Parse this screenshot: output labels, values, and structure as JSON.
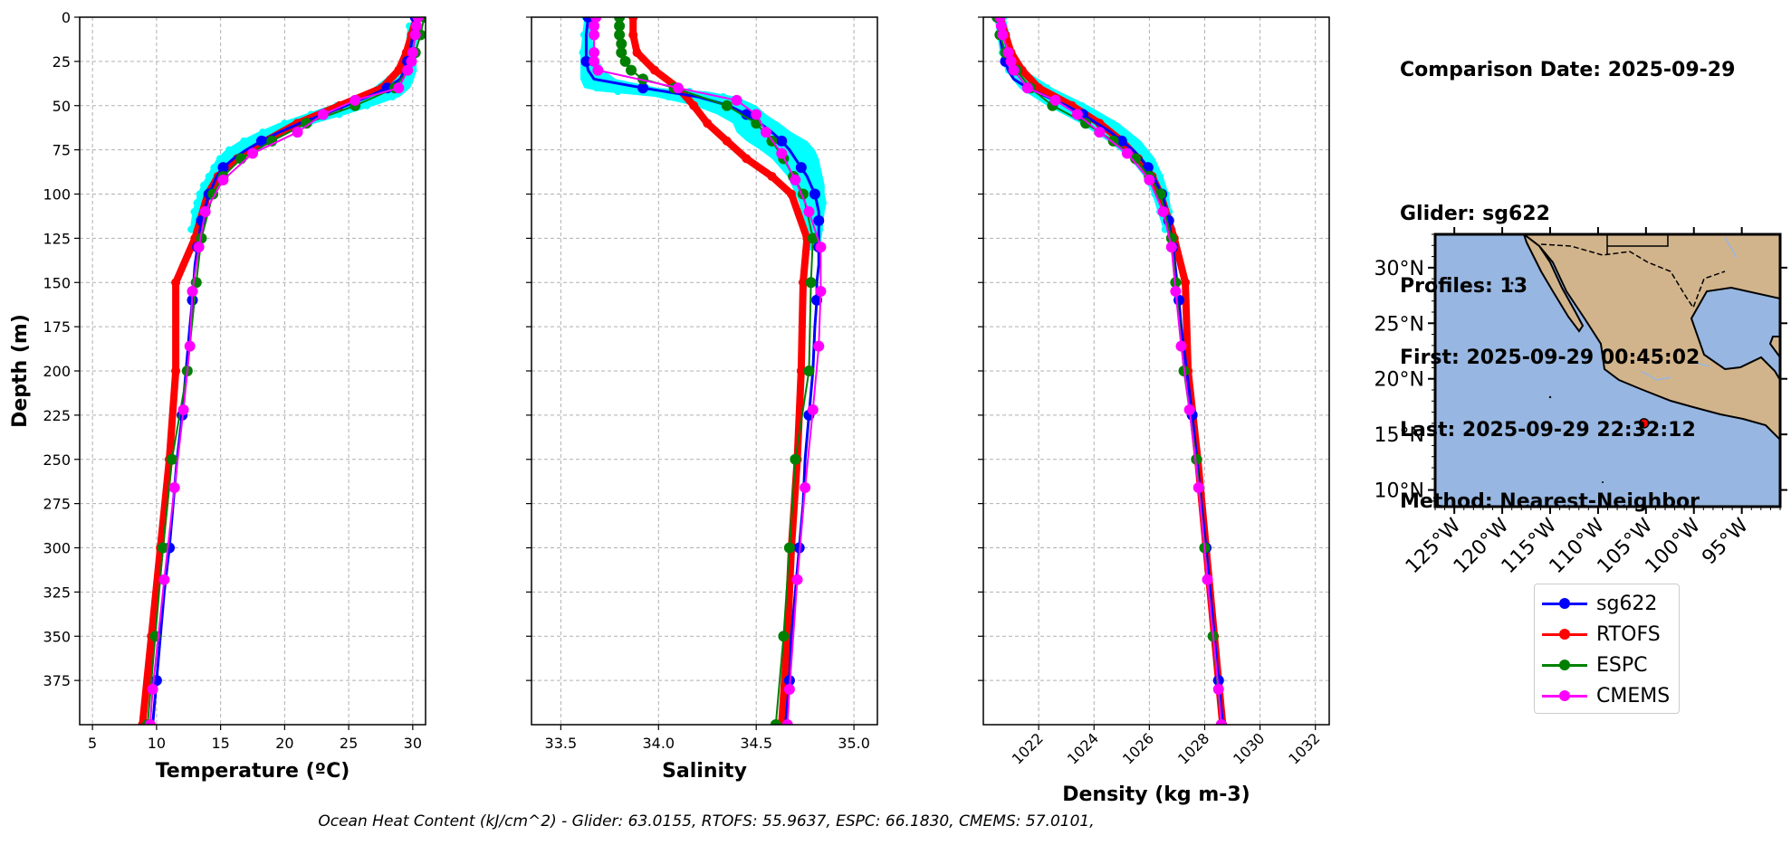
{
  "info": {
    "comparison_date": "Comparison Date: 2025-09-29",
    "glider": "Glider: sg622",
    "profiles": "Profiles: 13",
    "first": "First: 2025-09-29 00:45:02",
    "last": "Last: 2025-09-29 22:32:12",
    "method": "Method: Nearest-Neighbor"
  },
  "legend": [
    {
      "name": "sg622",
      "color": "#0000ff"
    },
    {
      "name": "RTOFS",
      "color": "#ff0000"
    },
    {
      "name": "ESPC",
      "color": "#008000"
    },
    {
      "name": "CMEMS",
      "color": "#ff00ff"
    }
  ],
  "footer": "Ocean Heat Content (kJ/cm^2) - Glider: 63.0155,  RTOFS: 55.9637,  ESPC: 66.1830,  CMEMS: 57.0101,",
  "map": {
    "lat_labels": [
      "30°N",
      "25°N",
      "20°N",
      "15°N",
      "10°N"
    ],
    "lon_labels": [
      "125°W",
      "120°W",
      "115°W",
      "110°W",
      "105°W",
      "100°W",
      "95°W"
    ],
    "glider_position": {
      "lon": -105.2,
      "lat": 16.0
    },
    "ocean_color": "#97b6e1",
    "land_color": "#d2b48c"
  },
  "chart_data": [
    {
      "type": "line",
      "xlabel": "Temperature (ºC)",
      "ylabel": "Depth (m)",
      "xlim": [
        4,
        31
      ],
      "ylim": [
        400,
        0
      ],
      "xticks": [
        5,
        10,
        15,
        20,
        25,
        30
      ],
      "yticks": [
        0,
        25,
        50,
        75,
        100,
        125,
        150,
        175,
        200,
        225,
        250,
        275,
        300,
        325,
        350,
        375
      ],
      "grid": true,
      "glider_cloud": {
        "color": "#00ffff",
        "depth": [
          5,
          20,
          30,
          35,
          40,
          45,
          50,
          55,
          60,
          65,
          70,
          75,
          80,
          85,
          90,
          95,
          100,
          105,
          110,
          120
        ],
        "min": [
          29.6,
          29.4,
          28.8,
          27.8,
          26.9,
          25.5,
          23.5,
          21.5,
          19.5,
          17.9,
          16.5,
          15.4,
          14.7,
          14.3,
          13.9,
          13.5,
          13.2,
          13.0,
          12.8,
          12.6
        ],
        "max": [
          30.4,
          30.3,
          30.3,
          30.1,
          29.8,
          29.0,
          27.0,
          24.8,
          22.4,
          20.2,
          18.4,
          17.0,
          16.2,
          15.4,
          15.0,
          14.6,
          14.2,
          13.9,
          13.6,
          13.2
        ]
      },
      "series": [
        {
          "name": "sg622",
          "color": "#0000ff",
          "marker_every": 3,
          "width": 3,
          "depth": [
            0,
            10,
            20,
            25,
            30,
            35,
            40,
            45,
            50,
            55,
            60,
            65,
            70,
            75,
            80,
            85,
            90,
            95,
            100,
            105,
            110,
            115,
            120,
            125,
            130,
            140,
            150,
            160,
            175,
            200,
            225,
            250,
            275,
            300,
            325,
            350,
            375,
            400
          ],
          "values": [
            30.2,
            30.0,
            29.8,
            29.6,
            29.4,
            29.0,
            28.0,
            26.5,
            24.8,
            23.0,
            21.2,
            19.6,
            18.2,
            17.0,
            16.0,
            15.2,
            14.7,
            14.4,
            14.1,
            13.9,
            13.7,
            13.5,
            13.4,
            13.3,
            13.2,
            13.0,
            12.9,
            12.8,
            12.6,
            12.3,
            12.0,
            11.6,
            11.3,
            11.0,
            10.6,
            10.3,
            10.0,
            9.7
          ]
        },
        {
          "name": "RTOFS",
          "color": "#ff0000",
          "marker_every": 1,
          "width": 8,
          "depth": [
            0,
            10,
            20,
            30,
            40,
            50,
            60,
            70,
            80,
            90,
            100,
            125,
            150,
            200,
            250,
            300,
            350,
            400
          ],
          "values": [
            30.3,
            29.9,
            29.5,
            28.9,
            27.6,
            24.3,
            21.0,
            18.5,
            16.3,
            14.8,
            14.0,
            13.0,
            11.5,
            11.5,
            11.0,
            10.3,
            9.6,
            8.9
          ]
        },
        {
          "name": "ESPC",
          "color": "#008000",
          "marker_every": 1,
          "width": 2,
          "depth": [
            0,
            10,
            20,
            30,
            40,
            50,
            60,
            70,
            80,
            90,
            100,
            125,
            150,
            200,
            250,
            300,
            350,
            400
          ],
          "values": [
            30.9,
            30.6,
            30.2,
            29.6,
            28.6,
            25.5,
            21.7,
            19.0,
            16.6,
            15.2,
            14.4,
            13.5,
            13.1,
            12.4,
            11.2,
            10.5,
            9.9,
            9.3
          ]
        },
        {
          "name": "CMEMS",
          "color": "#ff00ff",
          "marker_every": 1,
          "width": 2,
          "depth": [
            0,
            5,
            10,
            20,
            25,
            30,
            40,
            47,
            55,
            65,
            77,
            92,
            110,
            130,
            155,
            186,
            222,
            266,
            318,
            380,
            400
          ],
          "values": [
            30.4,
            30.3,
            30.2,
            30.0,
            29.9,
            29.6,
            28.9,
            25.5,
            23.0,
            21.0,
            17.5,
            15.2,
            13.8,
            13.3,
            12.8,
            12.6,
            12.1,
            11.4,
            10.6,
            9.7,
            9.5
          ]
        }
      ]
    },
    {
      "type": "line",
      "xlabel": "Salinity",
      "ylabel": "",
      "xlim": [
        33.35,
        35.12
      ],
      "ylim": [
        400,
        0
      ],
      "xticks": [
        33.5,
        34.0,
        34.5,
        35.0
      ],
      "xtick_labels": [
        "33.5",
        "34.0",
        "34.5",
        "35.0"
      ],
      "grid": true,
      "glider_cloud": {
        "color": "#00ffff",
        "depth": [
          0,
          10,
          20,
          30,
          35,
          40,
          42,
          45,
          50,
          55,
          60,
          65,
          70,
          75,
          80,
          85,
          90,
          95,
          100,
          105,
          110,
          120,
          130
        ],
        "min": [
          33.62,
          33.61,
          33.6,
          33.6,
          33.6,
          33.62,
          33.7,
          33.98,
          34.18,
          34.3,
          34.38,
          34.4,
          34.45,
          34.52,
          34.58,
          34.62,
          34.66,
          34.68,
          34.7,
          34.72,
          34.73,
          34.75,
          34.76
        ],
        "max": [
          33.66,
          33.66,
          33.67,
          33.72,
          33.78,
          34.0,
          34.25,
          34.4,
          34.5,
          34.55,
          34.62,
          34.68,
          34.76,
          34.8,
          34.82,
          34.83,
          34.84,
          34.85,
          34.85,
          34.86,
          34.85,
          34.84,
          34.83
        ]
      },
      "series": [
        {
          "name": "sg622",
          "color": "#0000ff",
          "marker_every": 3,
          "width": 3,
          "depth": [
            0,
            10,
            20,
            25,
            30,
            35,
            40,
            45,
            50,
            55,
            60,
            65,
            70,
            75,
            80,
            85,
            90,
            95,
            100,
            105,
            110,
            115,
            120,
            125,
            130,
            140,
            150,
            160,
            175,
            200,
            225,
            250,
            275,
            300,
            325,
            350,
            375,
            400
          ],
          "values": [
            33.64,
            33.63,
            33.63,
            33.63,
            33.64,
            33.67,
            33.92,
            34.2,
            34.36,
            34.45,
            34.52,
            34.58,
            34.63,
            34.67,
            34.7,
            34.73,
            34.76,
            34.78,
            34.8,
            34.81,
            34.82,
            34.82,
            34.82,
            34.82,
            34.82,
            34.82,
            34.81,
            34.81,
            34.8,
            34.79,
            34.77,
            34.75,
            34.74,
            34.72,
            34.7,
            34.68,
            34.67,
            34.65
          ]
        },
        {
          "name": "RTOFS",
          "color": "#ff0000",
          "marker_every": 1,
          "width": 8,
          "depth": [
            0,
            10,
            20,
            30,
            40,
            50,
            60,
            70,
            80,
            90,
            100,
            125,
            150,
            200,
            250,
            300,
            350,
            400
          ],
          "values": [
            33.87,
            33.87,
            33.89,
            33.98,
            34.1,
            34.18,
            34.25,
            34.35,
            34.45,
            34.58,
            34.68,
            34.76,
            34.74,
            34.73,
            34.71,
            34.68,
            34.66,
            34.63
          ]
        },
        {
          "name": "ESPC",
          "color": "#008000",
          "marker_every": 1,
          "width": 2,
          "depth": [
            0,
            5,
            10,
            15,
            20,
            25,
            30,
            35,
            40,
            50,
            60,
            70,
            80,
            90,
            100,
            125,
            150,
            200,
            250,
            300,
            350,
            400
          ],
          "values": [
            33.8,
            33.8,
            33.8,
            33.81,
            33.81,
            33.83,
            33.86,
            33.92,
            34.08,
            34.35,
            34.5,
            34.58,
            34.64,
            34.69,
            34.74,
            34.79,
            34.78,
            34.77,
            34.7,
            34.67,
            34.64,
            34.6
          ]
        },
        {
          "name": "CMEMS",
          "color": "#ff00ff",
          "marker_every": 1,
          "width": 2,
          "depth": [
            0,
            5,
            10,
            20,
            25,
            30,
            40,
            47,
            55,
            65,
            77,
            92,
            110,
            130,
            155,
            186,
            222,
            266,
            318,
            380,
            400
          ],
          "values": [
            33.68,
            33.67,
            33.67,
            33.67,
            33.67,
            33.69,
            34.1,
            34.4,
            34.5,
            34.55,
            34.63,
            34.7,
            34.77,
            34.83,
            34.83,
            34.82,
            34.79,
            34.75,
            34.71,
            34.67,
            34.66
          ]
        }
      ]
    },
    {
      "type": "line",
      "xlabel": "Density (kg m-3)",
      "ylabel": "",
      "xlim": [
        1020.0,
        1032.5
      ],
      "ylim": [
        400,
        0
      ],
      "xticks": [
        1022,
        1024,
        1026,
        1028,
        1030,
        1032
      ],
      "grid": true,
      "glider_cloud": {
        "color": "#00ffff",
        "depth": [
          0,
          20,
          30,
          40,
          50,
          60,
          70,
          80,
          90,
          100,
          110,
          120
        ],
        "min": [
          1020.4,
          1020.6,
          1020.8,
          1021.3,
          1022.3,
          1023.5,
          1024.5,
          1025.3,
          1025.8,
          1026.1,
          1026.3,
          1026.5
        ],
        "max": [
          1020.8,
          1021.1,
          1021.5,
          1022.5,
          1023.8,
          1024.9,
          1025.7,
          1026.2,
          1026.5,
          1026.7,
          1026.8,
          1026.9
        ]
      },
      "series": [
        {
          "name": "sg622",
          "color": "#0000ff",
          "marker_every": 3,
          "width": 3,
          "depth": [
            0,
            10,
            20,
            25,
            30,
            35,
            40,
            45,
            50,
            55,
            60,
            65,
            70,
            75,
            80,
            85,
            90,
            95,
            100,
            105,
            110,
            115,
            120,
            125,
            130,
            140,
            150,
            160,
            175,
            200,
            225,
            250,
            275,
            300,
            325,
            350,
            375,
            400
          ],
          "values": [
            1020.5,
            1020.6,
            1020.7,
            1020.8,
            1020.9,
            1021.1,
            1021.6,
            1022.3,
            1023.0,
            1023.6,
            1024.1,
            1024.6,
            1025.0,
            1025.4,
            1025.7,
            1025.95,
            1026.15,
            1026.3,
            1026.45,
            1026.55,
            1026.62,
            1026.7,
            1026.75,
            1026.8,
            1026.85,
            1026.93,
            1027.0,
            1027.07,
            1027.15,
            1027.35,
            1027.55,
            1027.72,
            1027.88,
            1028.05,
            1028.2,
            1028.35,
            1028.5,
            1028.65
          ]
        },
        {
          "name": "RTOFS",
          "color": "#ff0000",
          "marker_every": 1,
          "width": 8,
          "depth": [
            0,
            10,
            20,
            30,
            40,
            50,
            60,
            70,
            80,
            90,
            100,
            125,
            150,
            200,
            250,
            300,
            350,
            400
          ],
          "values": [
            1020.6,
            1020.8,
            1021.0,
            1021.4,
            1022.0,
            1023.2,
            1024.2,
            1025.0,
            1025.6,
            1026.1,
            1026.4,
            1026.9,
            1027.3,
            1027.4,
            1027.75,
            1028.05,
            1028.35,
            1028.65
          ]
        },
        {
          "name": "ESPC",
          "color": "#008000",
          "marker_every": 1,
          "width": 2,
          "depth": [
            0,
            10,
            20,
            30,
            40,
            50,
            60,
            70,
            80,
            90,
            100,
            125,
            150,
            200,
            250,
            300,
            350,
            400
          ],
          "values": [
            1020.5,
            1020.6,
            1020.8,
            1021.2,
            1021.7,
            1022.5,
            1023.7,
            1024.7,
            1025.5,
            1026.0,
            1026.4,
            1026.8,
            1026.95,
            1027.25,
            1027.7,
            1028.0,
            1028.3,
            1028.6
          ]
        },
        {
          "name": "CMEMS",
          "color": "#ff00ff",
          "marker_every": 1,
          "width": 2,
          "depth": [
            0,
            5,
            10,
            20,
            25,
            30,
            40,
            47,
            55,
            65,
            77,
            92,
            110,
            130,
            155,
            186,
            222,
            266,
            318,
            380,
            400
          ],
          "values": [
            1020.6,
            1020.65,
            1020.7,
            1020.9,
            1021.0,
            1021.1,
            1021.6,
            1022.6,
            1023.4,
            1024.2,
            1025.2,
            1026.0,
            1026.5,
            1026.8,
            1026.95,
            1027.15,
            1027.45,
            1027.78,
            1028.1,
            1028.5,
            1028.6
          ]
        }
      ]
    }
  ]
}
